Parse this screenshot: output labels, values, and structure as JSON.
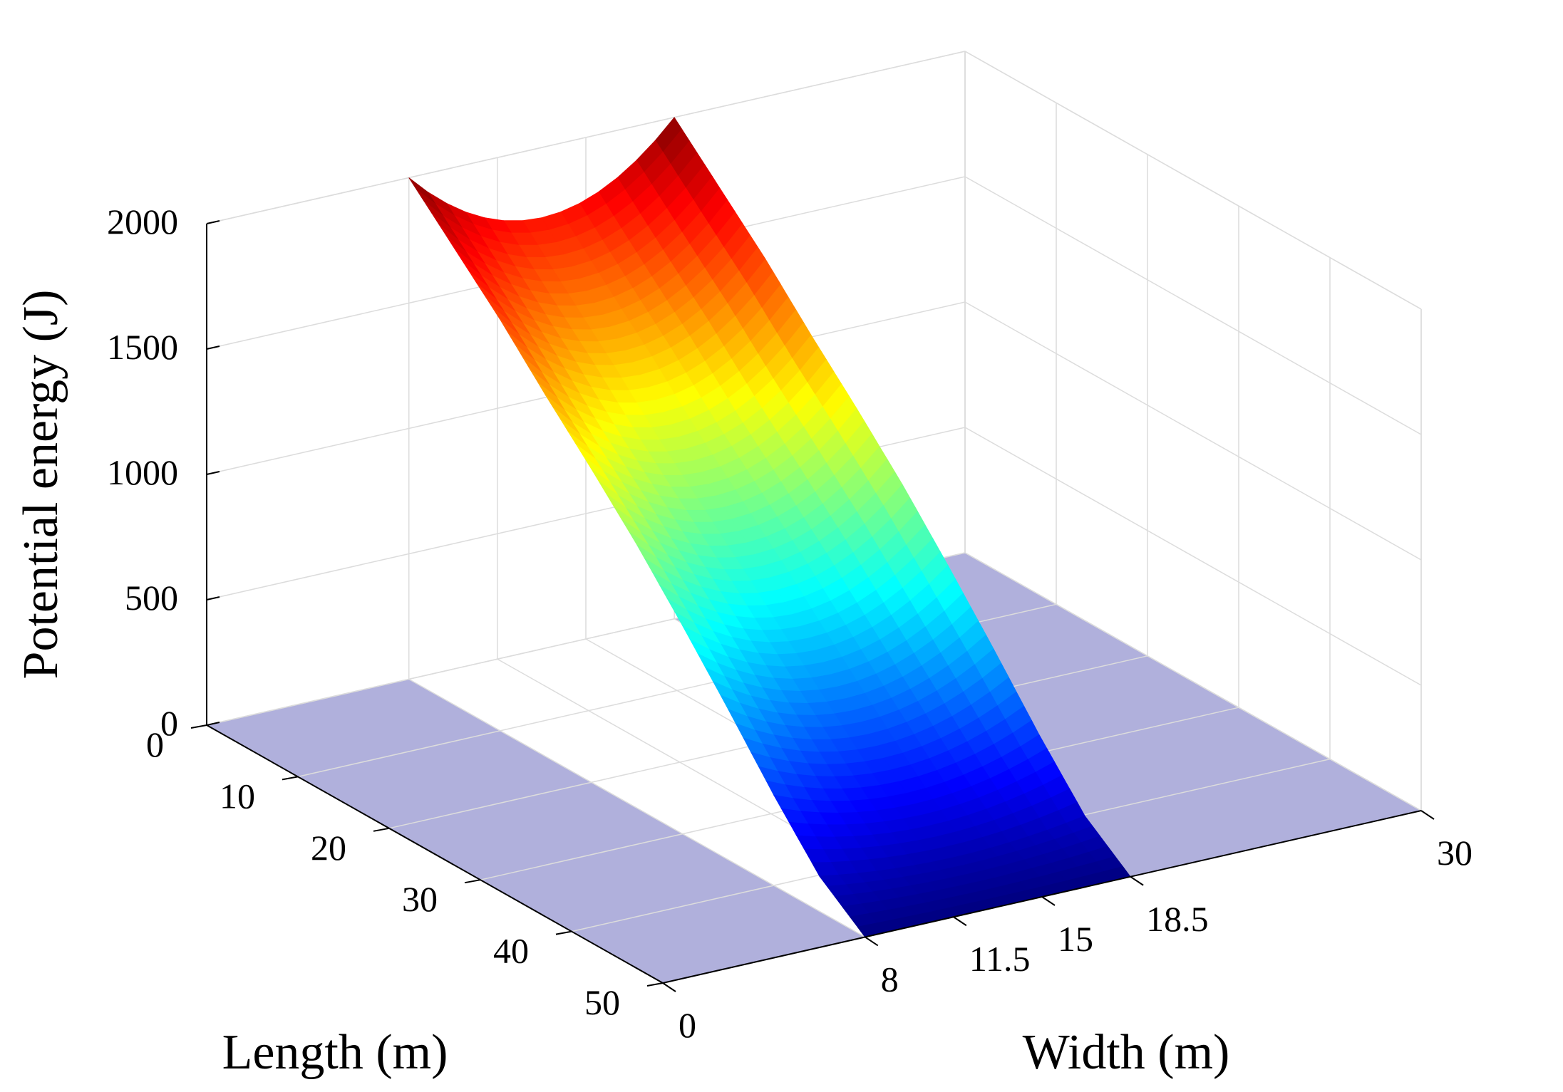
{
  "chart_data": {
    "type": "surface",
    "title": "",
    "xlabel": "Length (m)",
    "ylabel": "Width (m)",
    "zlabel": "Potential energy (J)",
    "x": {
      "ticks": [
        0,
        10,
        20,
        30,
        40,
        50
      ],
      "tick_labels": [
        "0",
        "10",
        "20",
        "30",
        "40",
        "50"
      ],
      "lim": [
        0,
        50
      ]
    },
    "y": {
      "ticks": [
        0,
        8,
        11.5,
        15,
        18.5,
        30
      ],
      "tick_labels": [
        "0",
        "8",
        "11.5",
        "15",
        "18.5",
        "30"
      ],
      "lim": [
        0,
        30
      ]
    },
    "z": {
      "ticks": [
        0,
        500,
        1000,
        1500,
        2000
      ],
      "tick_labels": [
        "0",
        "500",
        "1000",
        "1500",
        "2000"
      ],
      "lim": [
        0,
        2000
      ]
    },
    "grid": true,
    "colormap": "jet",
    "floor_regions": [
      {
        "y_range": [
          0,
          8
        ],
        "x_range": [
          0,
          50
        ],
        "color": "#b0b0dc"
      },
      {
        "y_range": [
          18.5,
          30
        ],
        "x_range": [
          0,
          50
        ],
        "color": "#b0b0dc"
      }
    ],
    "surface": {
      "x_range": [
        0,
        50
      ],
      "y_range": [
        8,
        18.5
      ],
      "x_samples": [
        0,
        5,
        10,
        15,
        20,
        25,
        30,
        35,
        40,
        45,
        50
      ],
      "profile_along_x": [
        2000,
        1820,
        1640,
        1440,
        1250,
        1050,
        830,
        600,
        360,
        140,
        0
      ],
      "width_bowl_scale": 0.35
    }
  }
}
